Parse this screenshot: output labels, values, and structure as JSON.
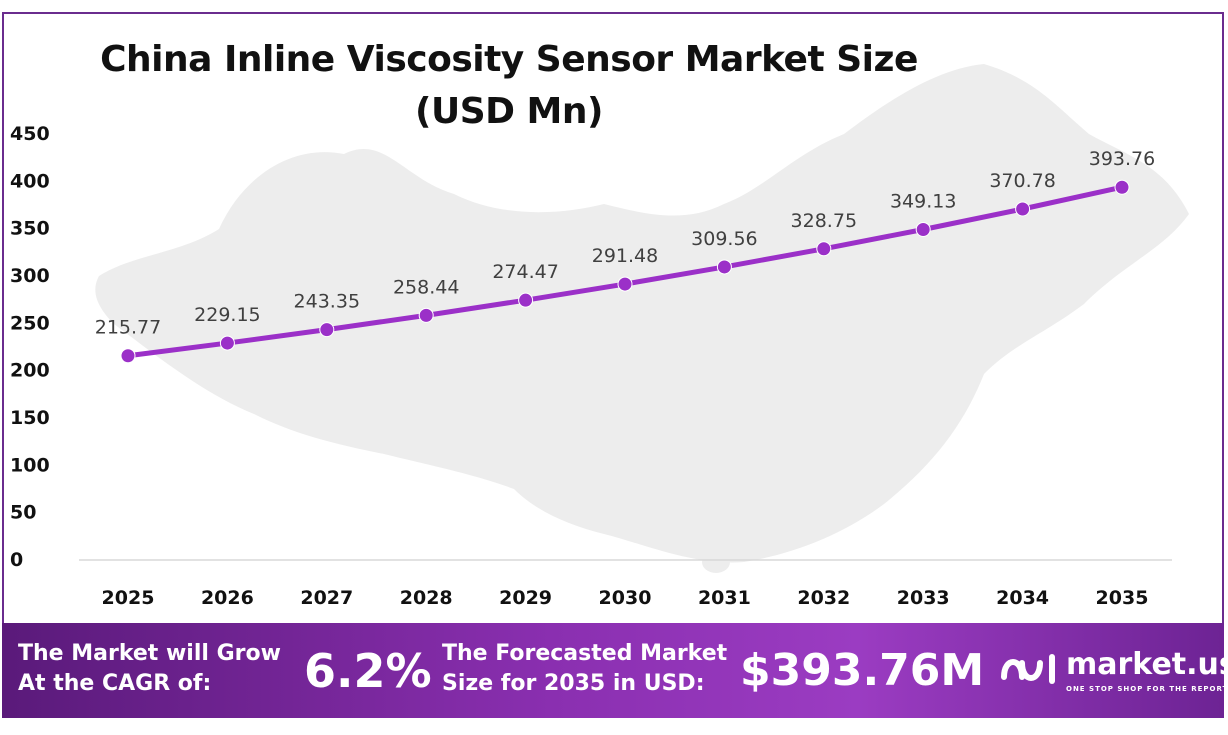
{
  "chart_data": {
    "type": "line",
    "title": "China Inline Viscosity Sensor Market Size",
    "subtitle": "(USD Mn)",
    "categories": [
      "2025",
      "2026",
      "2027",
      "2028",
      "2029",
      "2030",
      "2031",
      "2032",
      "2033",
      "2034",
      "2035"
    ],
    "series": [
      {
        "values": [
          215.77,
          229.15,
          243.35,
          258.44,
          274.47,
          291.48,
          309.56,
          328.75,
          349.13,
          370.78,
          393.76
        ]
      }
    ],
    "y_ticks": [
      "0",
      "50",
      "100",
      "150",
      "200",
      "250",
      "300",
      "350",
      "400",
      "450"
    ],
    "data_labels": [
      "215.77",
      "229.15",
      "243.35",
      "258.44",
      "274.47",
      "291.48",
      "309.56",
      "328.75",
      "349.13",
      "370.78",
      "393.76"
    ],
    "ylim": [
      0,
      450
    ],
    "grid": false,
    "line_color": "#9b30c8"
  },
  "footer": {
    "cagr_label_line1": "The Market will Grow",
    "cagr_label_line2": "At the CAGR of:",
    "cagr_value": "6.2%",
    "forecast_label_line1": "The Forecasted Market",
    "forecast_label_line2": "Size for 2035 in USD:",
    "forecast_value": "$393.76M",
    "brand_name": "market.us",
    "brand_tagline": "ONE STOP SHOP FOR THE REPORTS"
  }
}
